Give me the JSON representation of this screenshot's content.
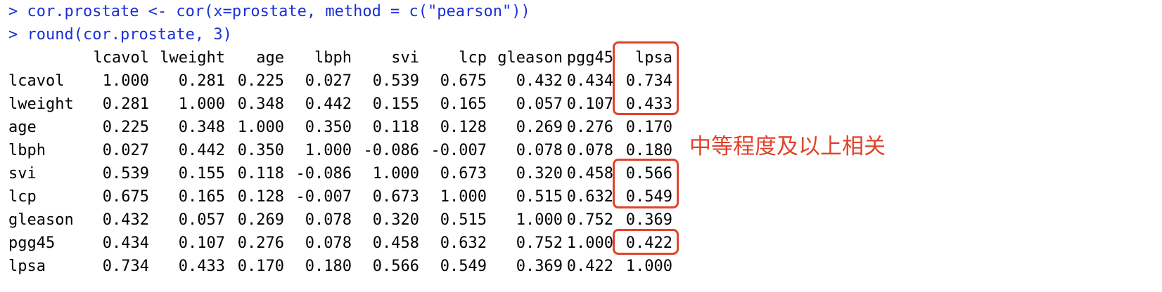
{
  "console": {
    "prompt": "> ",
    "commands": [
      "cor.prostate <- cor(x=prostate, method = c(\"pearson\"))",
      "round(cor.prostate, 3)"
    ]
  },
  "matrix": {
    "headers": [
      "lcavol",
      "lweight",
      "age",
      "lbph",
      "svi",
      "lcp",
      "gleason",
      "pgg45",
      "lpsa"
    ],
    "rows": [
      {
        "name": "lcavol",
        "values": [
          "1.000",
          "0.281",
          "0.225",
          "0.027",
          "0.539",
          "0.675",
          "0.432",
          "0.434",
          "0.734"
        ]
      },
      {
        "name": "lweight",
        "values": [
          "0.281",
          "1.000",
          "0.348",
          "0.442",
          "0.155",
          "0.165",
          "0.057",
          "0.107",
          "0.433"
        ]
      },
      {
        "name": "age",
        "values": [
          "0.225",
          "0.348",
          "1.000",
          "0.350",
          "0.118",
          "0.128",
          "0.269",
          "0.276",
          "0.170"
        ]
      },
      {
        "name": "lbph",
        "values": [
          "0.027",
          "0.442",
          "0.350",
          "1.000",
          "-0.086",
          "-0.007",
          "0.078",
          "0.078",
          "0.180"
        ]
      },
      {
        "name": "svi",
        "values": [
          "0.539",
          "0.155",
          "0.118",
          "-0.086",
          "1.000",
          "0.673",
          "0.320",
          "0.458",
          "0.566"
        ]
      },
      {
        "name": "lcp",
        "values": [
          "0.675",
          "0.165",
          "0.128",
          "-0.007",
          "0.673",
          "1.000",
          "0.515",
          "0.632",
          "0.549"
        ]
      },
      {
        "name": "gleason",
        "values": [
          "0.432",
          "0.057",
          "0.269",
          "0.078",
          "0.320",
          "0.515",
          "1.000",
          "0.752",
          "0.369"
        ]
      },
      {
        "name": "pgg45",
        "values": [
          "0.434",
          "0.107",
          "0.276",
          "0.078",
          "0.458",
          "0.632",
          "0.752",
          "1.000",
          "0.422"
        ]
      },
      {
        "name": "lpsa",
        "values": [
          "0.734",
          "0.433",
          "0.170",
          "0.180",
          "0.566",
          "0.549",
          "0.369",
          "0.422",
          "1.000"
        ]
      }
    ]
  },
  "annotation": {
    "text": "中等程度及以上相关",
    "color": "#e0432b"
  },
  "colors": {
    "command_text": "#1a2fd6",
    "output_text": "#000000",
    "highlight": "#e0432b"
  }
}
